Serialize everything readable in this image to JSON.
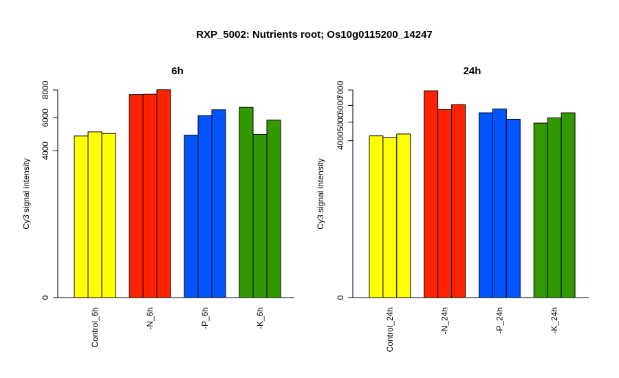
{
  "title": "RXP_5002: Nutrients root; Os10g0115200_14247",
  "chart_data": [
    {
      "type": "bar",
      "title": "6h",
      "ylabel": "Cy3 signal intensity",
      "xlabel": "",
      "ylim": [
        0,
        8000
      ],
      "y_scale": "sqrt",
      "yticks": [
        0,
        4000,
        6000,
        8000
      ],
      "categories": [
        "Control_6h",
        "-N_6h",
        "-P_6h",
        "-K_6h"
      ],
      "colors": [
        "#ffff00",
        "#ff2200",
        "#0055ff",
        "#339900"
      ],
      "values": [
        [
          4850,
          5100,
          5000
        ],
        [
          7650,
          7680,
          8020
        ],
        [
          4900,
          6150,
          6550
        ],
        [
          6720,
          4950,
          5850
        ]
      ]
    },
    {
      "type": "bar",
      "title": "24h",
      "ylabel": "Cy3 signal intensity",
      "xlabel": "",
      "ylim": [
        0,
        7000
      ],
      "y_scale": "sqrt",
      "yticks": [
        0,
        4000,
        5000,
        6000,
        7000
      ],
      "categories": [
        "Control_24h",
        "-N_24h",
        "-P_24h",
        "-K_24h"
      ],
      "colors": [
        "#ffff00",
        "#ff2200",
        "#0055ff",
        "#339900"
      ],
      "values": [
        [
          4250,
          4150,
          4350
        ],
        [
          6950,
          5750,
          6050
        ],
        [
          5550,
          5780,
          5170
        ],
        [
          4950,
          5250,
          5550
        ]
      ]
    }
  ]
}
